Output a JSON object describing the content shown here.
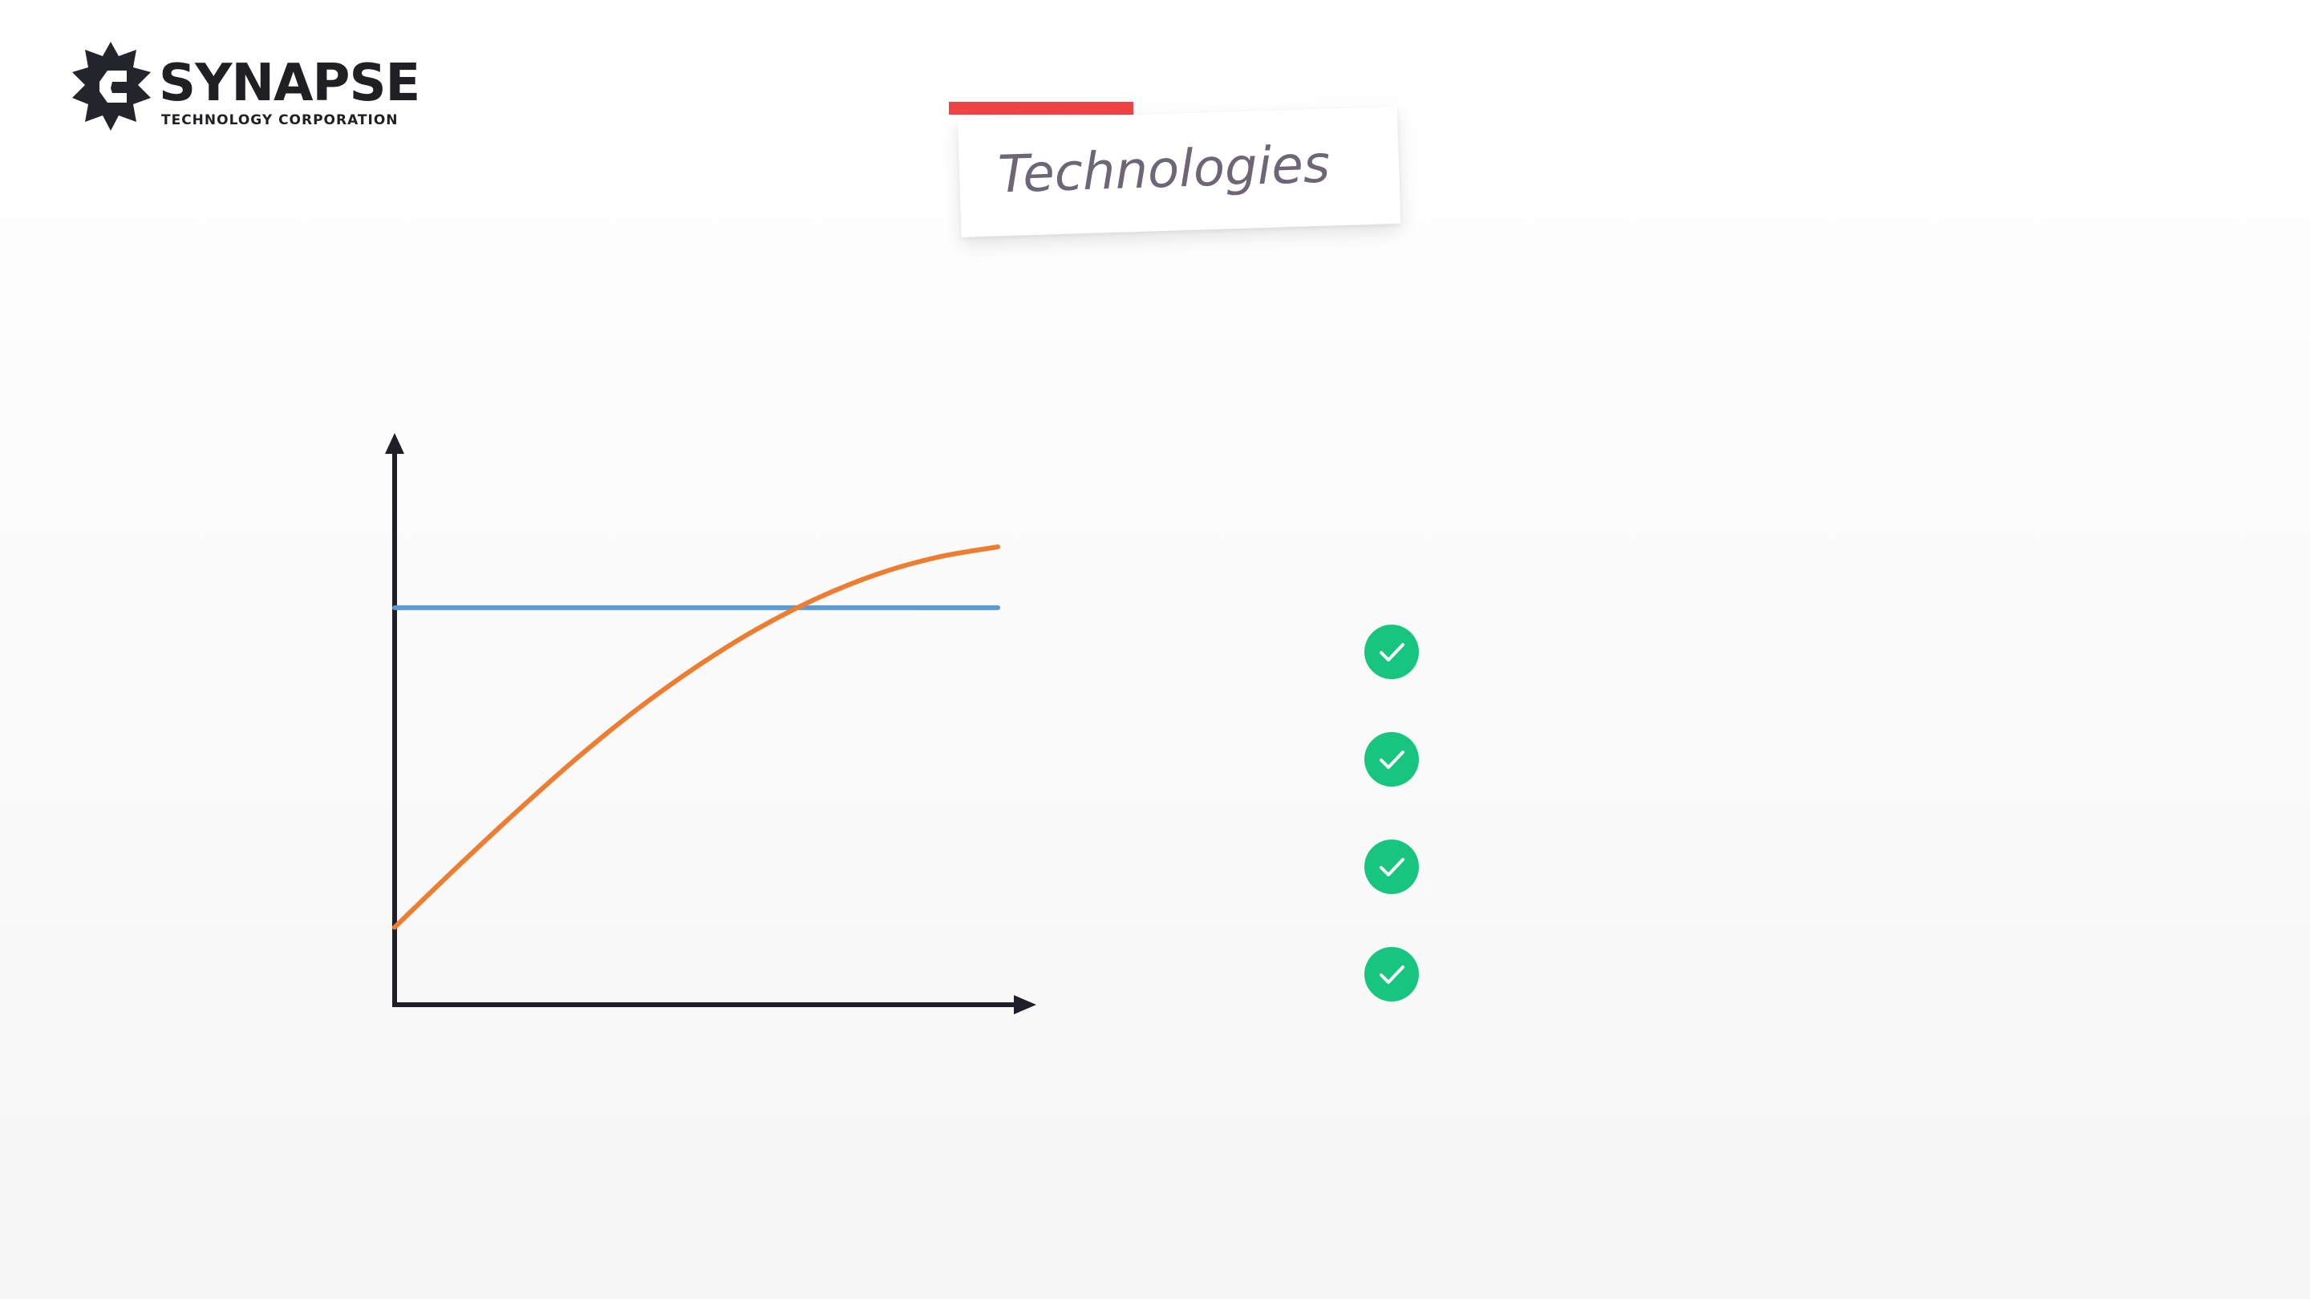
{
  "logo": {
    "name": "SYNAPSE",
    "tagline": "TECHNOLOGY CORPORATION"
  },
  "title": {
    "text": "Technologies"
  },
  "colors": {
    "accent": "#f04344",
    "check": "#17c57f",
    "axis": "#1f1f29",
    "series_flat": "#5b9bd5",
    "series_curve": "#ed7d31"
  },
  "chart_data": {
    "type": "line",
    "title": "",
    "xlabel": "",
    "ylabel": "",
    "xlim": [
      0,
      10
    ],
    "ylim": [
      0,
      10
    ],
    "grid": false,
    "legend": "none",
    "x": [
      0,
      1,
      2,
      3,
      4,
      5,
      6,
      7,
      8,
      9,
      10
    ],
    "series": [
      {
        "name": "",
        "color": "#5b9bd5",
        "values": [
          7.7,
          7.7,
          7.7,
          7.7,
          7.7,
          7.7,
          7.7,
          7.7,
          7.7,
          7.7,
          7.7
        ]
      },
      {
        "name": "",
        "color": "#ed7d31",
        "values": [
          1.5,
          2.63,
          3.72,
          4.76,
          5.71,
          6.55,
          7.28,
          7.88,
          8.35,
          8.68,
          8.88
        ]
      }
    ]
  },
  "checklist": {
    "items": [
      {
        "label": "",
        "icon": "check-circle-icon"
      },
      {
        "label": "",
        "icon": "check-circle-icon"
      },
      {
        "label": "",
        "icon": "check-circle-icon"
      },
      {
        "label": "",
        "icon": "check-circle-icon"
      }
    ]
  }
}
